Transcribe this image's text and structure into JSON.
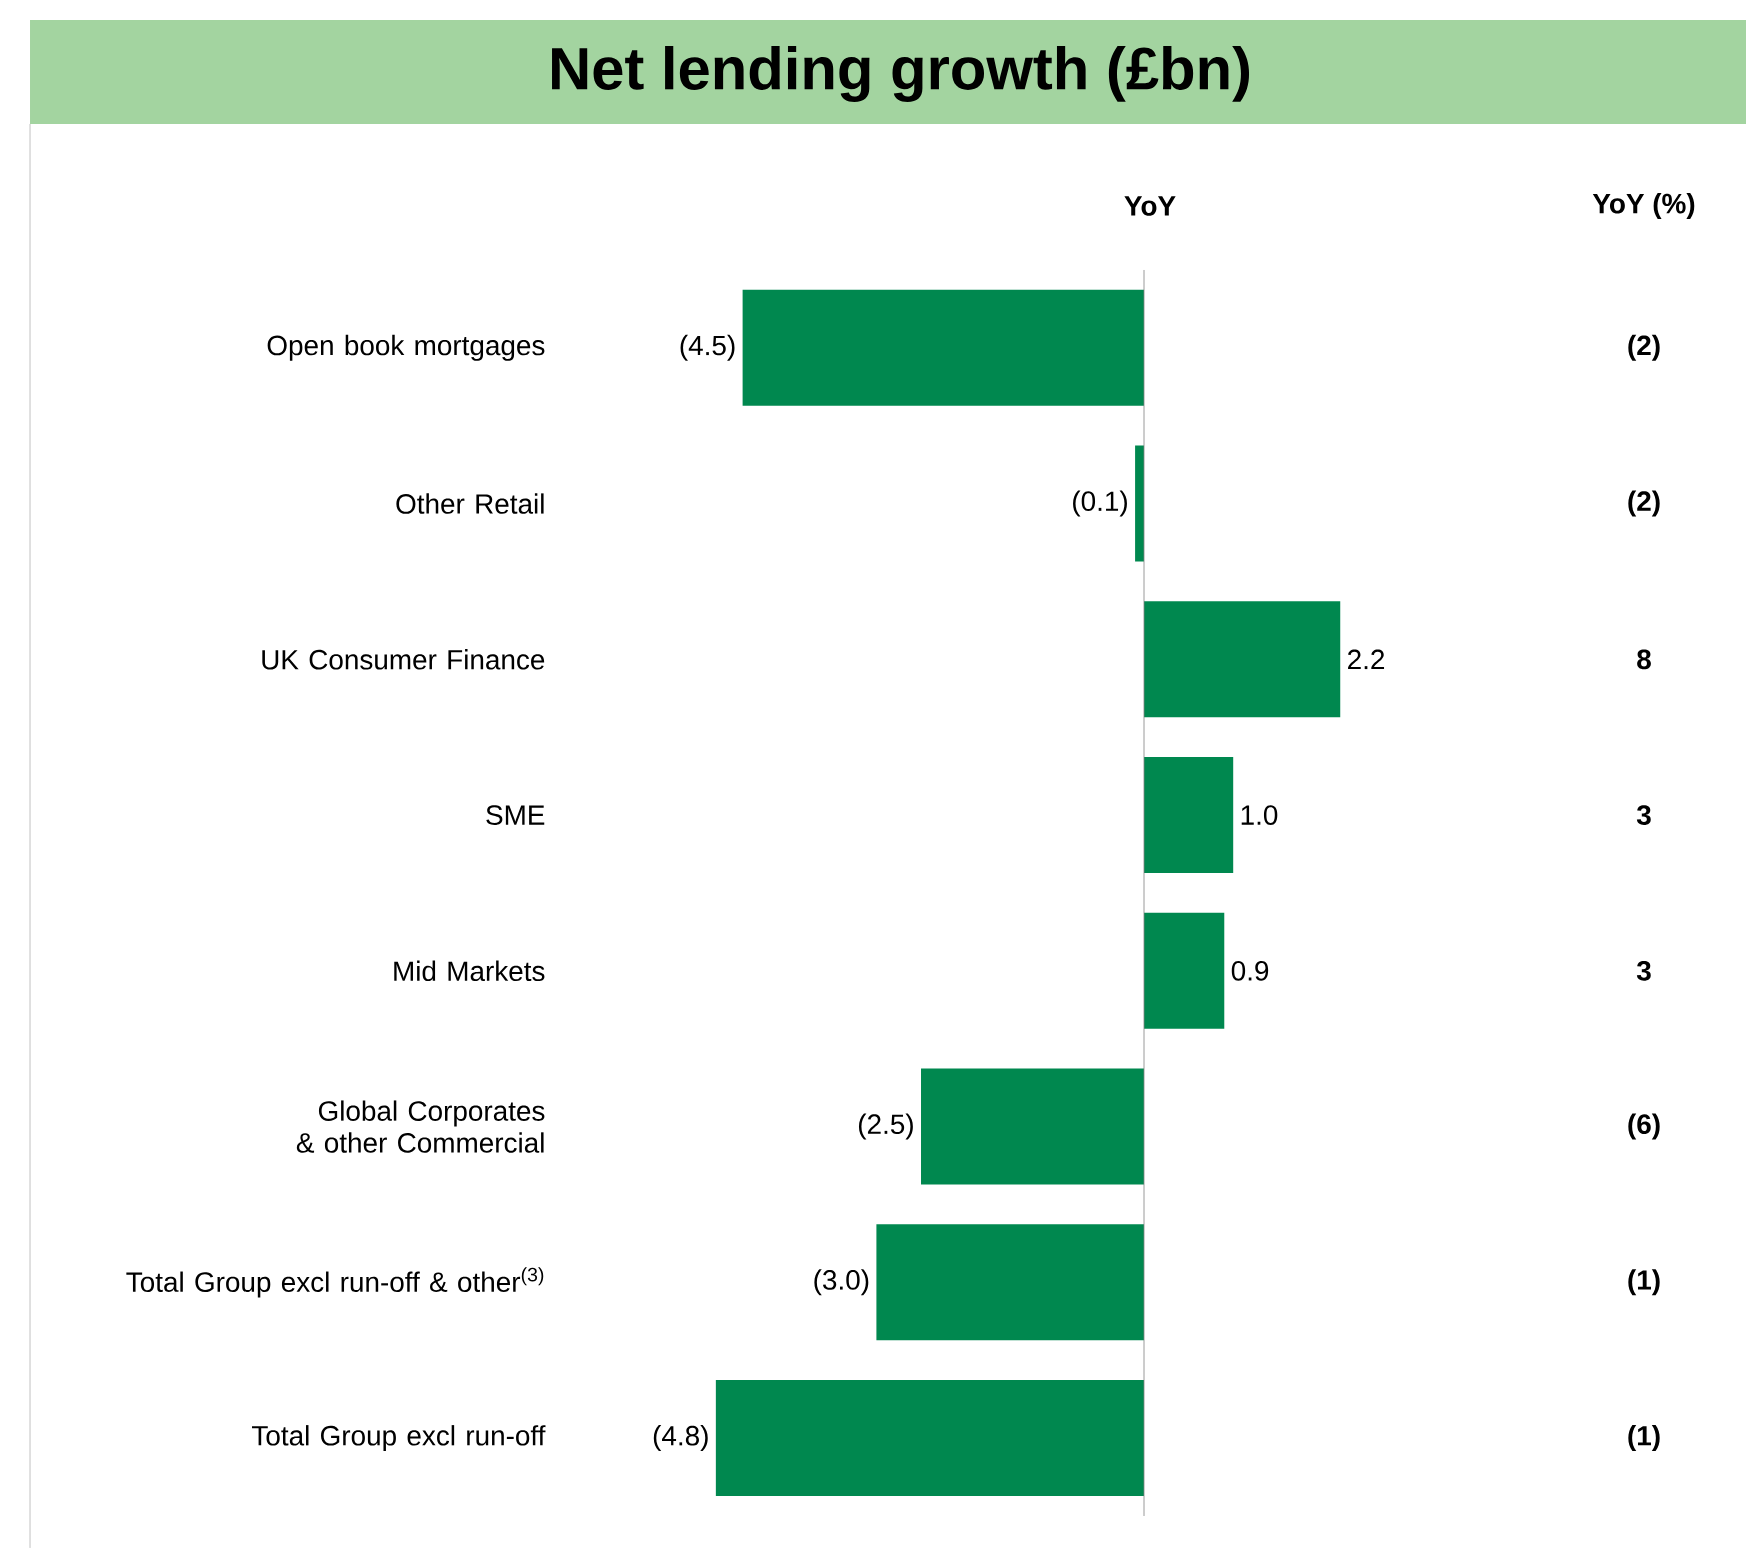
{
  "chart_data": {
    "type": "bar",
    "orientation": "horizontal",
    "title": "Net lending growth (£bn)",
    "categories": [
      "Open book mortgages",
      "Other Retail",
      "UK Consumer Finance",
      "SME",
      "Mid Markets",
      "Global Corporates & other Commercial",
      "Total Group excl run-off & other$^{(3)}$",
      "Total Group excl run-off"
    ],
    "values": [
      -4.5,
      -0.1,
      2.2,
      1.0,
      0.9,
      -2.5,
      -3.0,
      -4.8
    ],
    "value_labels": [
      "(4.5)",
      "(0.1)",
      "2.2",
      "1.0",
      "0.9",
      "(2.5)",
      "(3.0)",
      "(4.8)"
    ],
    "color": "#00884f",
    "annotations": [
      "YoY",
      "YoY (%)",
      "(2)",
      "(2)",
      "8",
      "3",
      "3",
      "(6)",
      "(1)",
      "(1)"
    ]
  }
}
